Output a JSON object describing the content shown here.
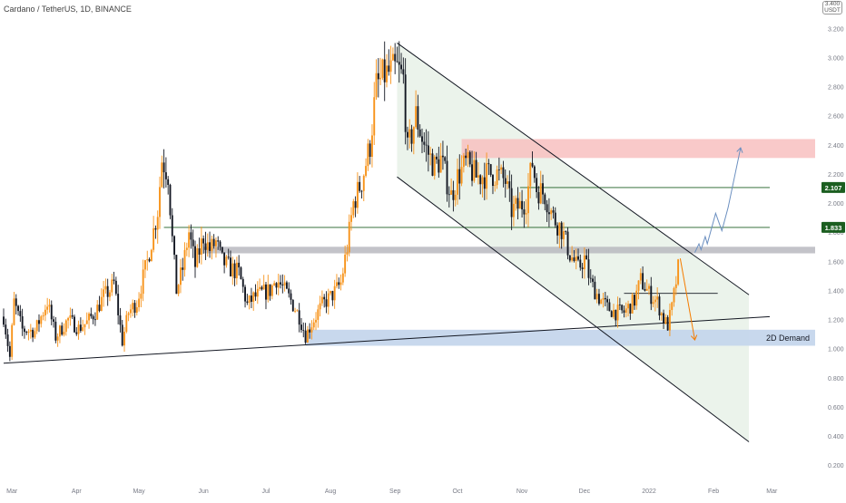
{
  "header": {
    "title": "Cardano / TetherUS, 1D, BINANCE",
    "currency_top": "3.400",
    "currency_bottom": "USDT"
  },
  "colors": {
    "up": "#f7931a",
    "down": "#131722",
    "support_line": "#131722",
    "green_line": "#1b5e20",
    "resistance_zone": "#f8bfc0",
    "grey_zone": "#b9b9bf",
    "demand_zone": "#c5d6ec",
    "channel_fill": "#e8f1e7",
    "projection_blue": "#6b8fc0",
    "projection_orange": "#f57c00"
  },
  "chart_data": {
    "type": "candlestick",
    "title": "Cardano / TetherUS, 1D, BINANCE",
    "y_unit": "USDT",
    "ylim": [
      0.2,
      3.4
    ],
    "y_ticks": [
      "3.200",
      "3.000",
      "2.800",
      "2.600",
      "2.400",
      "2.200",
      "2.000",
      "1.800",
      "1.600",
      "1.400",
      "1.200",
      "1.000",
      "0.800",
      "0.600",
      "0.400",
      "0.200"
    ],
    "x_ticks": [
      "Mar",
      "Apr",
      "May",
      "Jun",
      "Jul",
      "Aug",
      "Sep",
      "Oct",
      "Nov",
      "Dec",
      "2022",
      "Feb",
      "Mar"
    ],
    "grid": false,
    "price_path": [
      [
        "2021-02-25",
        1.22
      ],
      [
        "2021-02-28",
        0.94
      ],
      [
        "2021-03-02",
        1.32
      ],
      [
        "2021-03-06",
        1.13
      ],
      [
        "2021-03-12",
        1.12
      ],
      [
        "2021-03-18",
        1.32
      ],
      [
        "2021-03-22",
        1.08
      ],
      [
        "2021-03-28",
        1.2
      ],
      [
        "2021-04-02",
        1.14
      ],
      [
        "2021-04-06",
        1.18
      ],
      [
        "2021-04-10",
        1.25
      ],
      [
        "2021-04-14",
        1.36
      ],
      [
        "2021-04-17",
        1.4
      ],
      [
        "2021-04-19",
        1.45
      ],
      [
        "2021-04-23",
        1.05
      ],
      [
        "2021-04-26",
        1.25
      ],
      [
        "2021-04-30",
        1.32
      ],
      [
        "2021-05-05",
        1.6
      ],
      [
        "2021-05-10",
        1.95
      ],
      [
        "2021-05-12",
        2.3
      ],
      [
        "2021-05-15",
        2.2
      ],
      [
        "2021-05-17",
        1.75
      ],
      [
        "2021-05-19",
        1.4
      ],
      [
        "2021-05-22",
        1.55
      ],
      [
        "2021-05-25",
        1.8
      ],
      [
        "2021-05-28",
        1.57
      ],
      [
        "2021-06-01",
        1.77
      ],
      [
        "2021-06-04",
        1.68
      ],
      [
        "2021-06-07",
        1.73
      ],
      [
        "2021-06-10",
        1.6
      ],
      [
        "2021-06-14",
        1.55
      ],
      [
        "2021-06-18",
        1.52
      ],
      [
        "2021-06-22",
        1.3
      ],
      [
        "2021-06-25",
        1.35
      ],
      [
        "2021-06-29",
        1.38
      ],
      [
        "2021-07-03",
        1.4
      ],
      [
        "2021-07-06",
        1.48
      ],
      [
        "2021-07-09",
        1.42
      ],
      [
        "2021-07-13",
        1.33
      ],
      [
        "2021-07-17",
        1.22
      ],
      [
        "2021-07-20",
        1.09
      ],
      [
        "2021-07-24",
        1.2
      ],
      [
        "2021-07-28",
        1.3
      ],
      [
        "2021-08-02",
        1.37
      ],
      [
        "2021-08-06",
        1.45
      ],
      [
        "2021-08-09",
        1.7
      ],
      [
        "2021-08-12",
        2.0
      ],
      [
        "2021-08-16",
        2.15
      ],
      [
        "2021-08-20",
        2.4
      ],
      [
        "2021-08-23",
        2.8
      ],
      [
        "2021-08-27",
        2.88
      ],
      [
        "2021-09-02",
        2.92
      ],
      [
        "2021-09-05",
        2.85
      ],
      [
        "2021-09-07",
        2.35
      ],
      [
        "2021-09-11",
        2.6
      ],
      [
        "2021-09-15",
        2.4
      ],
      [
        "2021-09-20",
        2.25
      ],
      [
        "2021-09-23",
        2.3
      ],
      [
        "2021-09-28",
        2.05
      ],
      [
        "2021-10-01",
        2.18
      ],
      [
        "2021-10-05",
        2.27
      ],
      [
        "2021-10-10",
        2.18
      ],
      [
        "2021-10-16",
        2.2
      ],
      [
        "2021-10-20",
        2.2
      ],
      [
        "2021-10-24",
        2.15
      ],
      [
        "2021-10-27",
        1.95
      ],
      [
        "2021-10-31",
        1.98
      ],
      [
        "2021-11-03",
        2.02
      ],
      [
        "2021-11-06",
        2.28
      ],
      [
        "2021-11-08",
        2.1
      ],
      [
        "2021-11-12",
        2.06
      ],
      [
        "2021-11-16",
        1.9
      ],
      [
        "2021-11-20",
        1.82
      ],
      [
        "2021-11-24",
        1.65
      ],
      [
        "2021-11-28",
        1.55
      ],
      [
        "2021-12-01",
        1.62
      ],
      [
        "2021-12-04",
        1.45
      ],
      [
        "2021-12-08",
        1.35
      ],
      [
        "2021-12-12",
        1.28
      ],
      [
        "2021-12-16",
        1.25
      ],
      [
        "2021-12-20",
        1.25
      ],
      [
        "2021-12-25",
        1.33
      ],
      [
        "2021-12-28",
        1.47
      ],
      [
        "2022-01-01",
        1.38
      ],
      [
        "2022-01-05",
        1.32
      ],
      [
        "2022-01-08",
        1.2
      ],
      [
        "2022-01-10",
        1.16
      ],
      [
        "2022-01-12",
        1.28
      ],
      [
        "2022-01-15",
        1.55
      ]
    ],
    "last_close_date": "2022-01-15",
    "price_labels": [
      {
        "label": "2.107",
        "value": 2.107
      },
      {
        "label": "1.833",
        "value": 1.833
      }
    ],
    "zones": [
      {
        "name": "resistance",
        "from_date": "2021-10-03",
        "to_date": "2022-02-28",
        "top": 2.44,
        "bottom": 2.31
      },
      {
        "name": "flip-zone",
        "from_date": "2021-06-01",
        "to_date": "2022-02-28",
        "top": 1.7,
        "bottom": 1.655
      },
      {
        "name": "demand",
        "label": "2D Demand",
        "from_date": "2021-07-20",
        "to_date": "2022-02-28",
        "top": 1.13,
        "bottom": 1.02
      }
    ],
    "trendlines": [
      {
        "name": "long-term-support",
        "points": [
          [
            "2021-02-25",
            0.9
          ],
          [
            "2022-02-28",
            1.22
          ]
        ]
      },
      {
        "name": "channel-upper",
        "points": [
          [
            "2021-09-02",
            3.1
          ],
          [
            "2022-02-18",
            1.37
          ]
        ]
      },
      {
        "name": "channel-lower",
        "points": [
          [
            "2021-09-02",
            2.18
          ],
          [
            "2022-02-18",
            0.36
          ]
        ]
      }
    ],
    "horizontal_lines": [
      {
        "name": "level-2107",
        "from_date": "2021-10-31",
        "to_date": "2022-02-28",
        "value": 2.107
      },
      {
        "name": "level-1833",
        "from_date": "2021-05-13",
        "to_date": "2022-02-28",
        "value": 1.833
      },
      {
        "name": "level-138",
        "from_date": "2021-12-20",
        "to_date": "2022-02-03",
        "value": 1.38
      }
    ],
    "projections": [
      {
        "name": "bullish-path",
        "points": [
          [
            "2022-01-23",
            1.66
          ],
          [
            "2022-01-25",
            1.72
          ],
          [
            "2022-01-26",
            1.68
          ],
          [
            "2022-01-28",
            1.77
          ],
          [
            "2022-01-29",
            1.72
          ],
          [
            "2022-02-02",
            1.93
          ],
          [
            "2022-02-05",
            1.81
          ],
          [
            "2022-02-08",
            1.97
          ],
          [
            "2022-02-14",
            2.38
          ]
        ]
      },
      {
        "name": "bearish-path",
        "points": [
          [
            "2022-01-16",
            1.62
          ],
          [
            "2022-01-23",
            1.06
          ]
        ]
      }
    ]
  }
}
